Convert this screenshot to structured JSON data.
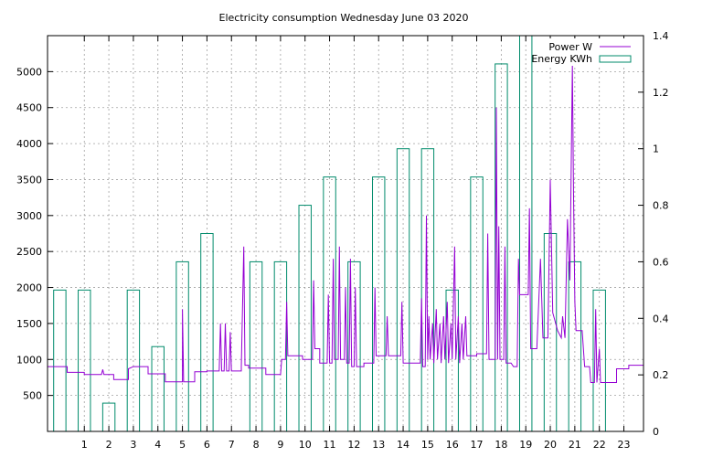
{
  "chart_data": {
    "type": "bar",
    "title": "Electricity consumption Wednesday June 03 2020",
    "legend": {
      "position": "top-right"
    },
    "grid": true,
    "x": {
      "min": -0.5,
      "max": 23.8,
      "ticks": [
        1,
        2,
        3,
        4,
        5,
        6,
        7,
        8,
        9,
        10,
        11,
        12,
        13,
        14,
        15,
        16,
        17,
        18,
        19,
        20,
        21,
        22,
        23
      ]
    },
    "y_left": {
      "min": 0,
      "max": 5500,
      "ticks": [
        500,
        1000,
        1500,
        2000,
        2500,
        3000,
        3500,
        4000,
        4500,
        5000
      ]
    },
    "y_right": {
      "min": 0,
      "max": 1.4,
      "ticks": [
        0,
        0.2,
        0.4,
        0.6,
        0.8,
        1,
        1.2,
        1.4
      ]
    },
    "series": [
      {
        "name": "Power W",
        "type": "line",
        "color": "#9400d3",
        "axis": "left",
        "points": [
          [
            -0.5,
            900
          ],
          [
            0.3,
            900
          ],
          [
            0.3,
            820
          ],
          [
            1.0,
            820
          ],
          [
            1.0,
            790
          ],
          [
            1.7,
            790
          ],
          [
            1.75,
            860
          ],
          [
            1.8,
            790
          ],
          [
            2.2,
            790
          ],
          [
            2.2,
            720
          ],
          [
            2.8,
            720
          ],
          [
            2.8,
            870
          ],
          [
            3.0,
            900
          ],
          [
            3.6,
            900
          ],
          [
            3.6,
            800
          ],
          [
            4.3,
            800
          ],
          [
            4.3,
            690
          ],
          [
            5.0,
            690
          ],
          [
            5.0,
            1700
          ],
          [
            5.05,
            690
          ],
          [
            5.5,
            690
          ],
          [
            5.5,
            830
          ],
          [
            6.0,
            830
          ],
          [
            6.0,
            840
          ],
          [
            6.5,
            840
          ],
          [
            6.55,
            1500
          ],
          [
            6.6,
            840
          ],
          [
            6.7,
            840
          ],
          [
            6.75,
            1500
          ],
          [
            6.8,
            840
          ],
          [
            6.9,
            840
          ],
          [
            6.95,
            1380
          ],
          [
            7.0,
            840
          ],
          [
            7.4,
            840
          ],
          [
            7.4,
            900
          ],
          [
            7.5,
            2570
          ],
          [
            7.55,
            920
          ],
          [
            7.7,
            920
          ],
          [
            7.7,
            880
          ],
          [
            8.4,
            880
          ],
          [
            8.4,
            790
          ],
          [
            9.0,
            790
          ],
          [
            9.05,
            1000
          ],
          [
            9.2,
            1000
          ],
          [
            9.25,
            1800
          ],
          [
            9.3,
            1050
          ],
          [
            9.9,
            1050
          ],
          [
            9.9,
            1000
          ],
          [
            10.3,
            1000
          ],
          [
            10.35,
            2100
          ],
          [
            10.4,
            1150
          ],
          [
            10.6,
            1150
          ],
          [
            10.6,
            950
          ],
          [
            10.9,
            950
          ],
          [
            10.95,
            1900
          ],
          [
            11.0,
            950
          ],
          [
            11.1,
            950
          ],
          [
            11.15,
            2400
          ],
          [
            11.2,
            1000
          ],
          [
            11.35,
            1000
          ],
          [
            11.4,
            2570
          ],
          [
            11.45,
            1000
          ],
          [
            11.6,
            1000
          ],
          [
            11.65,
            2000
          ],
          [
            11.7,
            950
          ],
          [
            11.8,
            950
          ],
          [
            11.85,
            2400
          ],
          [
            11.9,
            900
          ],
          [
            12.0,
            900
          ],
          [
            12.05,
            2000
          ],
          [
            12.1,
            900
          ],
          [
            12.4,
            900
          ],
          [
            12.4,
            950
          ],
          [
            12.8,
            950
          ],
          [
            12.85,
            2000
          ],
          [
            12.9,
            1050
          ],
          [
            13.3,
            1050
          ],
          [
            13.35,
            1600
          ],
          [
            13.4,
            1050
          ],
          [
            13.9,
            1050
          ],
          [
            13.95,
            1800
          ],
          [
            14.0,
            950
          ],
          [
            14.7,
            950
          ],
          [
            14.75,
            1850
          ],
          [
            14.8,
            900
          ],
          [
            14.9,
            900
          ],
          [
            14.95,
            3000
          ],
          [
            15.0,
            1000
          ],
          [
            15.05,
            1600
          ],
          [
            15.1,
            1000
          ],
          [
            15.2,
            1500
          ],
          [
            15.25,
            950
          ],
          [
            15.35,
            1700
          ],
          [
            15.4,
            1000
          ],
          [
            15.5,
            1500
          ],
          [
            15.55,
            950
          ],
          [
            15.65,
            1600
          ],
          [
            15.7,
            1000
          ],
          [
            15.8,
            1800
          ],
          [
            15.85,
            950
          ],
          [
            15.95,
            1500
          ],
          [
            16.0,
            1000
          ],
          [
            16.1,
            2570
          ],
          [
            16.15,
            1000
          ],
          [
            16.25,
            1600
          ],
          [
            16.3,
            950
          ],
          [
            16.4,
            1500
          ],
          [
            16.45,
            1000
          ],
          [
            16.55,
            1600
          ],
          [
            16.6,
            1050
          ],
          [
            17.0,
            1050
          ],
          [
            17.0,
            1080
          ],
          [
            17.4,
            1080
          ],
          [
            17.45,
            2750
          ],
          [
            17.5,
            1000
          ],
          [
            17.75,
            1000
          ],
          [
            17.8,
            4500
          ],
          [
            17.85,
            1000
          ],
          [
            17.9,
            2850
          ],
          [
            17.95,
            1000
          ],
          [
            18.1,
            1000
          ],
          [
            18.15,
            2570
          ],
          [
            18.2,
            950
          ],
          [
            18.4,
            950
          ],
          [
            18.5,
            900
          ],
          [
            18.65,
            900
          ],
          [
            18.7,
            2400
          ],
          [
            18.75,
            1900
          ],
          [
            19.1,
            1900
          ],
          [
            19.15,
            3100
          ],
          [
            19.2,
            1150
          ],
          [
            19.45,
            1150
          ],
          [
            19.6,
            2400
          ],
          [
            19.7,
            1300
          ],
          [
            19.9,
            1300
          ],
          [
            20.0,
            3500
          ],
          [
            20.1,
            1650
          ],
          [
            20.3,
            1400
          ],
          [
            20.45,
            1300
          ],
          [
            20.5,
            1600
          ],
          [
            20.6,
            1300
          ],
          [
            20.7,
            2950
          ],
          [
            20.8,
            2100
          ],
          [
            20.9,
            5100
          ],
          [
            20.95,
            3250
          ],
          [
            21.0,
            1800
          ],
          [
            21.05,
            1400
          ],
          [
            21.3,
            1400
          ],
          [
            21.4,
            900
          ],
          [
            21.6,
            900
          ],
          [
            21.65,
            680
          ],
          [
            21.8,
            680
          ],
          [
            21.85,
            1700
          ],
          [
            21.9,
            680
          ],
          [
            22.0,
            1150
          ],
          [
            22.05,
            680
          ],
          [
            22.7,
            680
          ],
          [
            22.7,
            870
          ],
          [
            23.2,
            870
          ],
          [
            23.2,
            920
          ],
          [
            23.8,
            920
          ]
        ]
      },
      {
        "name": "Energy KWh",
        "type": "bar",
        "color": "#008b6b",
        "axis": "right",
        "x": [
          0,
          1,
          2,
          3,
          4,
          5,
          6,
          7,
          8,
          9,
          10,
          11,
          12,
          13,
          14,
          15,
          16,
          17,
          18,
          19,
          20,
          21,
          22,
          23
        ],
        "values": [
          0.5,
          0.5,
          0.1,
          0.5,
          0.3,
          0.6,
          0.7,
          0,
          0.6,
          0.6,
          0.8,
          0.9,
          0.6,
          0.9,
          1.0,
          1.0,
          0.5,
          0.9,
          1.3,
          1.4,
          0.7,
          0.6,
          0.5,
          0
        ]
      }
    ]
  }
}
